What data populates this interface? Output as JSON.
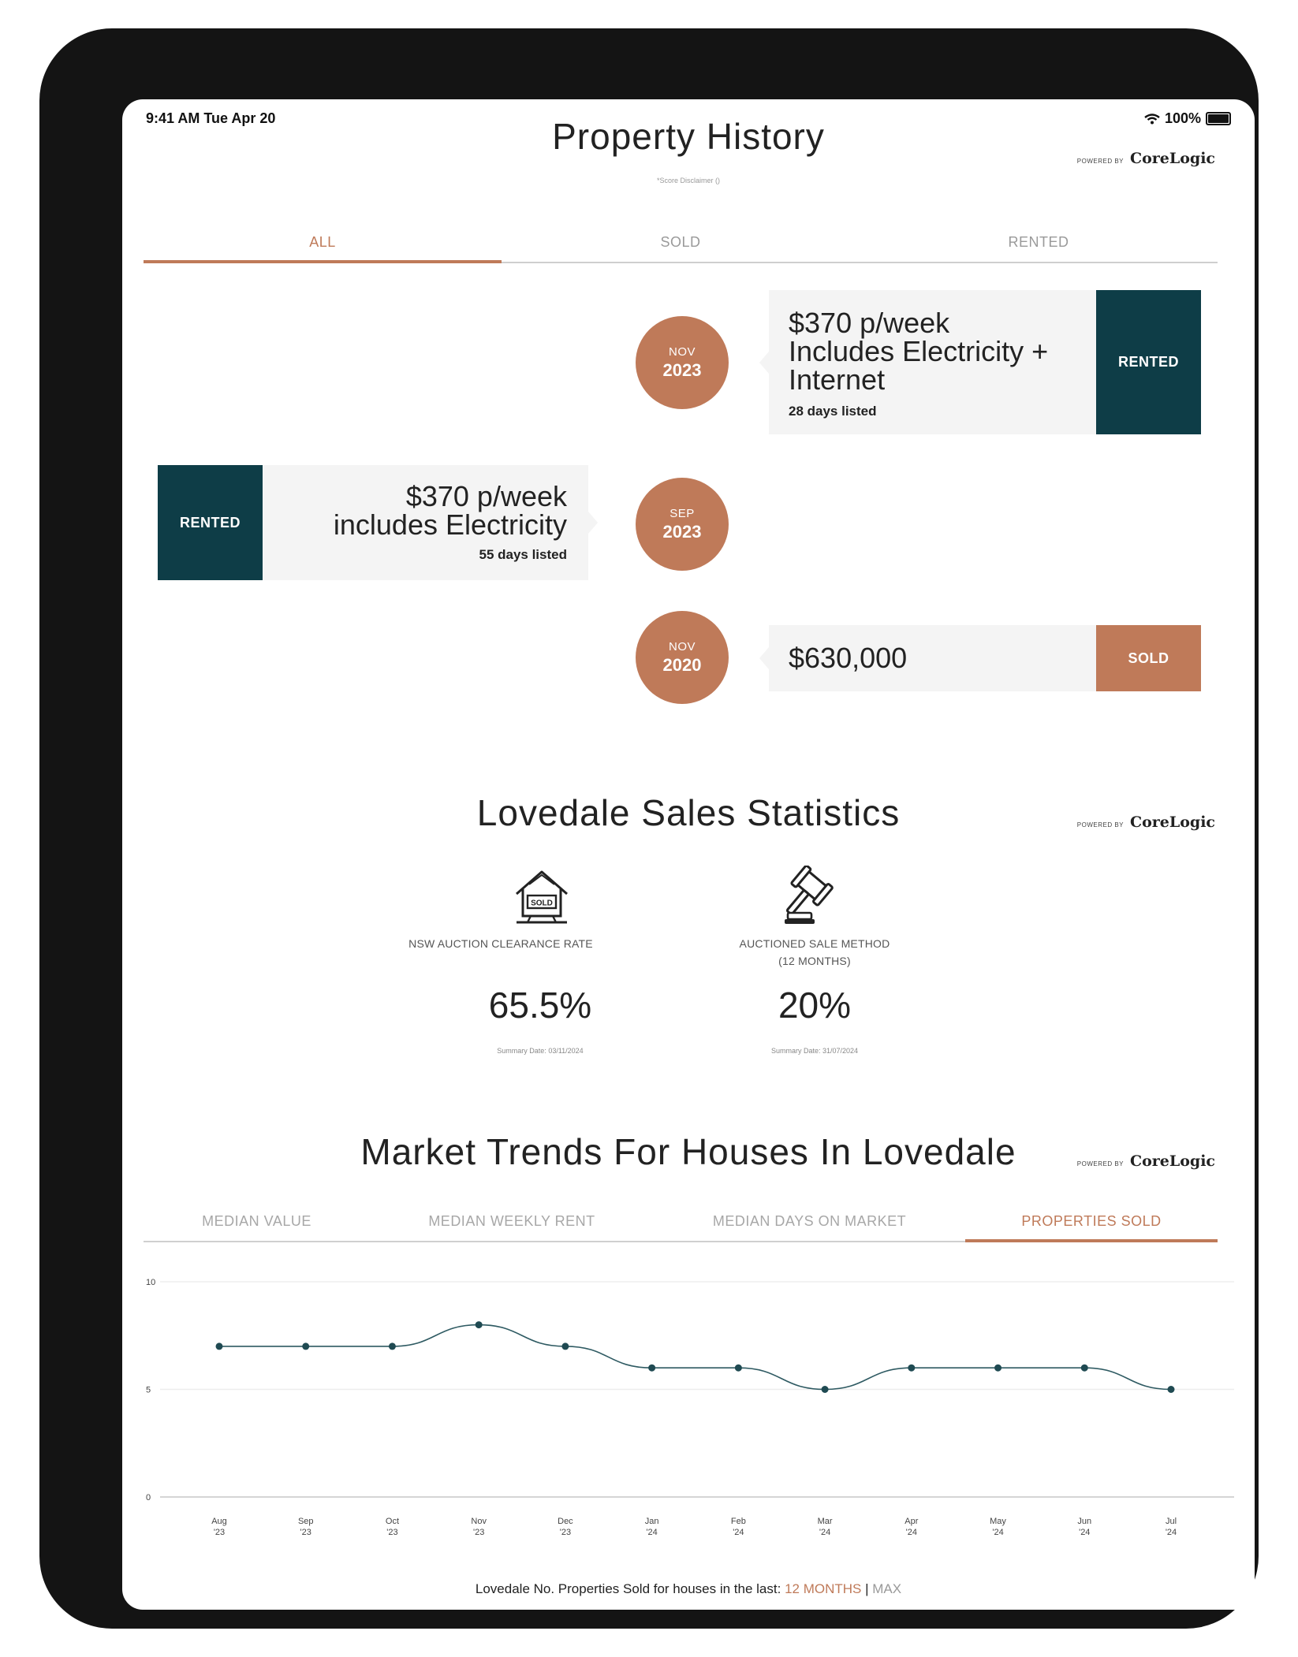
{
  "status": {
    "time": "9:41 AM  Tue Apr 20",
    "battery": "100%"
  },
  "property_history": {
    "title": "Property History",
    "disclaimer": "*Score Disclaimer ()",
    "powered_by": "POWERED BY",
    "brand": "CoreLogic",
    "tabs": [
      {
        "label": "ALL",
        "active": true
      },
      {
        "label": "SOLD",
        "active": false
      },
      {
        "label": "RENTED",
        "active": false
      }
    ],
    "events": [
      {
        "month": "NOV",
        "year": "2023",
        "price": "$370 p/week",
        "detail_lines": [
          "Includes Electricity +",
          "Internet"
        ],
        "days": "28 days listed",
        "badge": "RENTED"
      },
      {
        "month": "SEP",
        "year": "2023",
        "price": "$370 p/week",
        "detail_lines": [
          "includes Electricity"
        ],
        "days": "55 days listed",
        "badge": "RENTED"
      },
      {
        "month": "NOV",
        "year": "2020",
        "price": "$630,000",
        "detail_lines": [],
        "days": "",
        "badge": "SOLD"
      }
    ]
  },
  "sales_stats": {
    "title": "Lovedale Sales Statistics",
    "stats": [
      {
        "icon": "sold-house-icon",
        "label_lines": [
          "NSW AUCTION CLEARANCE RATE"
        ],
        "value": "65.5%",
        "date": "Summary Date: 03/11/2024"
      },
      {
        "icon": "auction-gavel-icon",
        "label_lines": [
          "AUCTIONED SALE METHOD",
          "(12 MONTHS)"
        ],
        "value": "20%",
        "date": "Summary Date: 31/07/2024"
      }
    ]
  },
  "market_trends": {
    "title": "Market Trends For Houses In Lovedale",
    "tabs": [
      {
        "label": "MEDIAN VALUE",
        "active": false
      },
      {
        "label": "MEDIAN WEEKLY RENT",
        "active": false
      },
      {
        "label": "MEDIAN DAYS ON MARKET",
        "active": false
      },
      {
        "label": "PROPERTIES SOLD",
        "active": true
      }
    ],
    "footer_prefix": "Lovedale No. Properties Sold for houses in the last:",
    "footer_link_12m": "12 MONTHS",
    "footer_sep": "|",
    "footer_link_max": "MAX"
  },
  "colors": {
    "accent": "#bf7a59",
    "teal": "#0e3d47",
    "line": "#2e5a62"
  },
  "chart_data": {
    "type": "line",
    "x": [
      "Aug '23",
      "Sep '23",
      "Oct '23",
      "Nov '23",
      "Dec '23",
      "Jan '24",
      "Feb '24",
      "Mar '24",
      "Apr '24",
      "May '24",
      "Jun '24",
      "Jul '24"
    ],
    "x_ticks": [
      [
        "Aug",
        "'23"
      ],
      [
        "Sep",
        "'23"
      ],
      [
        "Oct",
        "'23"
      ],
      [
        "Nov",
        "'23"
      ],
      [
        "Dec",
        "'23"
      ],
      [
        "Jan",
        "'24"
      ],
      [
        "Feb",
        "'24"
      ],
      [
        "Mar",
        "'24"
      ],
      [
        "Apr",
        "'24"
      ],
      [
        "May",
        "'24"
      ],
      [
        "Jun",
        "'24"
      ],
      [
        "Jul",
        "'24"
      ]
    ],
    "series": [
      {
        "values": [
          7,
          7,
          7,
          8,
          7,
          6,
          6,
          5,
          6,
          6,
          6,
          5
        ]
      }
    ],
    "ylim": [
      0,
      10
    ],
    "yticks": [
      "0",
      "5",
      "10"
    ],
    "grid": true
  }
}
